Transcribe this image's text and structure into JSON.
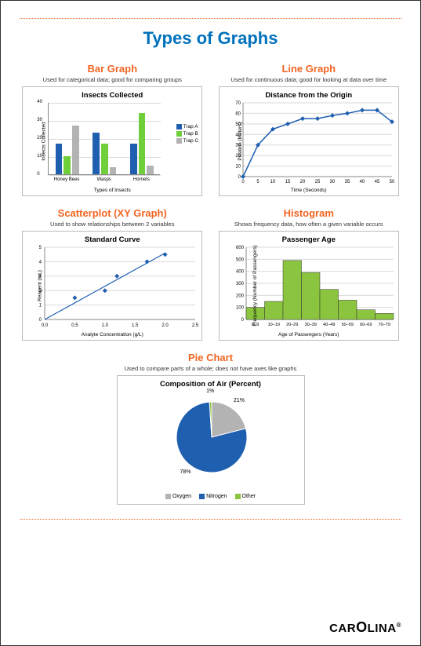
{
  "page": {
    "title": "Types of Graphs",
    "brand": "CAROLINA"
  },
  "bar": {
    "section_title": "Bar Graph",
    "section_desc": "Used for categorical data; good for comparing groups",
    "chart_title": "Insects Collected",
    "xlabel": "Types of Insects",
    "ylabel": "Insects Collected",
    "ylim": [
      0,
      40
    ],
    "ytick_step": 10,
    "categories": [
      "Honey Bees",
      "Wasps",
      "Hornets"
    ],
    "series": [
      {
        "name": "Trap A",
        "color": "#1f5fb0",
        "values": [
          17,
          23,
          17
        ]
      },
      {
        "name": "Trap B",
        "color": "#6fcf3a",
        "values": [
          10,
          17,
          34
        ]
      },
      {
        "name": "Trap C",
        "color": "#b3b3b3",
        "values": [
          27,
          4,
          5
        ]
      }
    ],
    "grid_color": "#d9d9d9",
    "bg": "#ffffff",
    "title_fontsize": 9.5
  },
  "line": {
    "section_title": "Line Graph",
    "section_desc": "Used for continuous data; good for looking at data over time",
    "chart_title": "Distance from the Origin",
    "xlabel": "Time (Seconds)",
    "ylabel": "Position (Meters)",
    "xlim": [
      0,
      50
    ],
    "xtick_step": 5,
    "ylim": [
      0,
      70
    ],
    "ytick_step": 10,
    "color": "#1f5fb0",
    "marker": "diamond",
    "line_width": 1.5,
    "points": [
      [
        0,
        0
      ],
      [
        5,
        30
      ],
      [
        10,
        45
      ],
      [
        15,
        50
      ],
      [
        20,
        55
      ],
      [
        25,
        55
      ],
      [
        30,
        58
      ],
      [
        35,
        60
      ],
      [
        40,
        63
      ],
      [
        45,
        63
      ],
      [
        50,
        52
      ]
    ],
    "grid_color": "#d9d9d9"
  },
  "scatter": {
    "section_title": "Scatterplot (XY Graph)",
    "section_desc": "Used to show relationships between 2 variables",
    "chart_title": "Standard Curve",
    "xlabel": "Analyte Concentration (g/L)",
    "ylabel": "Reagent (mL)",
    "xlim": [
      0.0,
      2.5
    ],
    "xticks": [
      "0.0",
      "0.5",
      "1.0",
      "1.5",
      "2.0",
      "2.5"
    ],
    "ylim": [
      0,
      5
    ],
    "yticks": [
      0,
      1,
      2,
      3,
      4,
      5
    ],
    "fit_color": "#1f5fb0",
    "marker_color": "#1f5fb0",
    "marker": "diamond",
    "points": [
      [
        0.5,
        1.5
      ],
      [
        1.0,
        2.0
      ],
      [
        1.2,
        3.0
      ],
      [
        1.7,
        4.0
      ],
      [
        2.0,
        4.5
      ]
    ],
    "fit_line": [
      [
        0,
        0
      ],
      [
        2.0,
        4.6
      ]
    ],
    "grid_color": "#d9d9d9"
  },
  "hist": {
    "section_title": "Histogram",
    "section_desc": "Shows frequency data, how often a given variable occurs",
    "chart_title": "Passenger Age",
    "xlabel": "Age of Passengers (Years)",
    "ylabel": "Frequency\n(Number of Passengers)",
    "ylim": [
      0,
      600
    ],
    "ytick_step": 100,
    "bins": [
      "0–9",
      "10–19",
      "20–29",
      "30–39",
      "40–49",
      "50–59",
      "60–69",
      "70–79"
    ],
    "values": [
      100,
      150,
      490,
      390,
      250,
      160,
      80,
      50
    ],
    "bar_color": "#8bc53f",
    "bar_border": "#333333",
    "grid_color": "#d9d9d9"
  },
  "pie": {
    "section_title": "Pie Chart",
    "section_desc": "Used to compare parts of a whole; does not have axes like graphs",
    "chart_title": "Composition of Air (Percent)",
    "slices": [
      {
        "label": "Oxygen",
        "pct": 21,
        "color": "#b3b3b3"
      },
      {
        "label": "Nitrogen",
        "pct": 78,
        "color": "#1f5fb0"
      },
      {
        "label": "Other",
        "pct": 1,
        "color": "#8bc53f"
      }
    ],
    "bg": "#ffffff"
  }
}
